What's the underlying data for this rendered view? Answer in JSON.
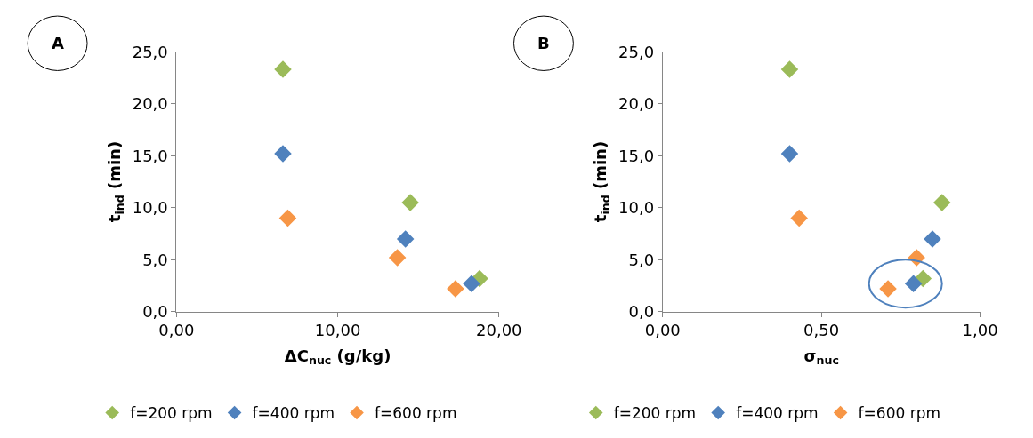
{
  "chart_data": [
    {
      "type": "scatter",
      "title": "A",
      "xlabel": "ΔC$_{nuc}$ (g/kg)",
      "ylabel": "t$_{ind}$ (min)",
      "marker": "diamond",
      "legend": "bottom",
      "xlim": [
        0,
        20
      ],
      "xticks": [
        {
          "value": 0,
          "label": "0,00"
        },
        {
          "value": 10,
          "label": "10,00"
        },
        {
          "value": 20,
          "label": "20,00"
        }
      ],
      "ylim": [
        0,
        25
      ],
      "yticks": [
        {
          "value": 0,
          "label": "0,0"
        },
        {
          "value": 5,
          "label": "5,0"
        },
        {
          "value": 10,
          "label": "10,0"
        },
        {
          "value": 15,
          "label": "15,0"
        },
        {
          "value": 20,
          "label": "20,0"
        },
        {
          "value": 25,
          "label": "25,0"
        }
      ],
      "series": [
        {
          "name": "f=200 rpm",
          "color": "#9bbb59",
          "x": [
            6.6,
            14.5,
            18.8
          ],
          "values": [
            23.3,
            10.5,
            3.2
          ]
        },
        {
          "name": "f=400 rpm",
          "color": "#4f81bd",
          "x": [
            6.6,
            14.2,
            18.3
          ],
          "values": [
            15.2,
            7.0,
            2.7
          ]
        },
        {
          "name": "f=600 rpm",
          "color": "#f79646",
          "x": [
            6.9,
            13.7,
            17.3
          ],
          "values": [
            9.0,
            5.2,
            2.2
          ]
        }
      ]
    },
    {
      "type": "scatter",
      "title": "B",
      "xlabel": "σ$_{nuc}$",
      "ylabel": "t$_{ind}$ (min)",
      "marker": "diamond",
      "legend": "bottom",
      "xlim": [
        0,
        1
      ],
      "xticks": [
        {
          "value": 0,
          "label": "0,00"
        },
        {
          "value": 0.5,
          "label": "0,50"
        },
        {
          "value": 1,
          "label": "1,00"
        }
      ],
      "ylim": [
        0,
        25
      ],
      "yticks": [
        {
          "value": 0,
          "label": "0,0"
        },
        {
          "value": 5,
          "label": "5,0"
        },
        {
          "value": 10,
          "label": "10,0"
        },
        {
          "value": 15,
          "label": "15,0"
        },
        {
          "value": 20,
          "label": "20,0"
        },
        {
          "value": 25,
          "label": "25,0"
        }
      ],
      "series": [
        {
          "name": "f=200 rpm",
          "color": "#9bbb59",
          "x": [
            0.4,
            0.88,
            0.82
          ],
          "values": [
            23.3,
            10.5,
            3.2
          ]
        },
        {
          "name": "f=400 rpm",
          "color": "#4f81bd",
          "x": [
            0.4,
            0.85,
            0.79
          ],
          "values": [
            15.2,
            7.0,
            2.7
          ]
        },
        {
          "name": "f=600 rpm",
          "color": "#f79646",
          "x": [
            0.43,
            0.8,
            0.71
          ],
          "values": [
            9.0,
            5.2,
            2.2
          ]
        }
      ]
    }
  ]
}
